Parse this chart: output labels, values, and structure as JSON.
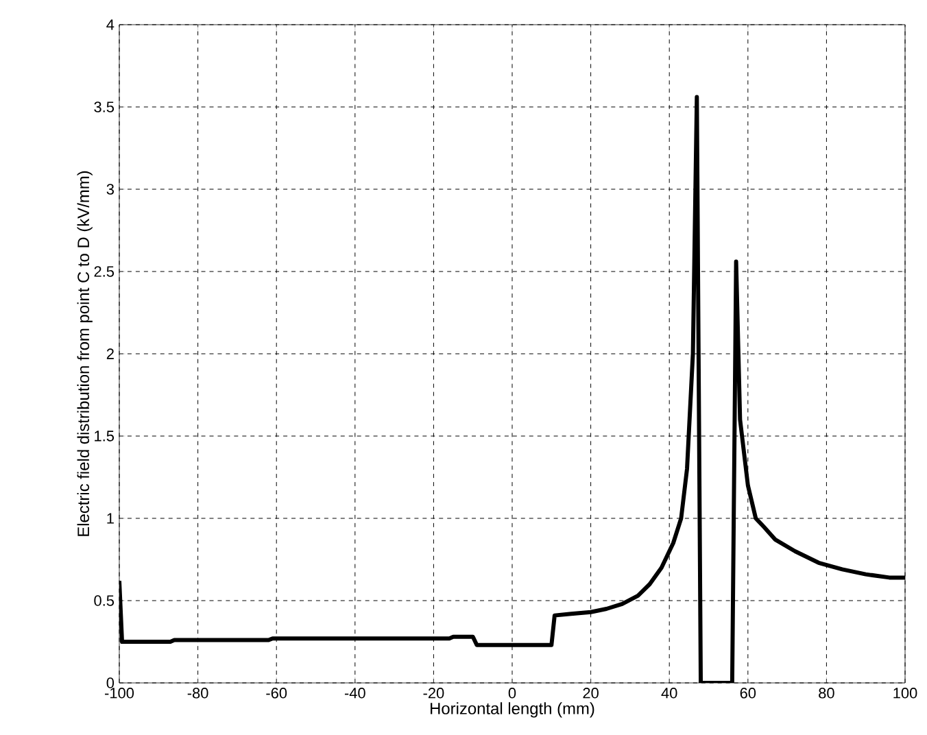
{
  "chart_data": {
    "type": "line",
    "xlabel": "Horizontal length (mm)",
    "ylabel": "Electric field distribution from point C to D (kV/mm)",
    "series": [
      {
        "color": "#000000",
        "x": [
          -100,
          -99.3,
          -87,
          -86,
          -62,
          -61,
          -16,
          -15,
          -10,
          -9,
          10,
          10.8,
          15,
          20,
          24,
          28,
          32,
          35,
          38,
          41,
          43,
          44.5,
          46,
          47,
          48,
          56,
          57,
          58,
          60,
          62,
          64,
          67,
          72,
          78,
          84,
          90,
          96,
          100
        ],
        "values": [
          0.62,
          0.25,
          0.25,
          0.26,
          0.26,
          0.27,
          0.27,
          0.28,
          0.28,
          0.23,
          0.23,
          0.41,
          0.42,
          0.43,
          0.45,
          0.48,
          0.53,
          0.6,
          0.7,
          0.85,
          1.0,
          1.3,
          2.0,
          3.56,
          0,
          0,
          2.56,
          1.6,
          1.2,
          1.0,
          0.95,
          0.87,
          0.8,
          0.73,
          0.69,
          0.66,
          0.64,
          0.64
        ]
      }
    ],
    "xlim": [
      -100,
      100
    ],
    "ylim": [
      0,
      4
    ],
    "xticks": [
      -100,
      -80,
      -60,
      -40,
      -20,
      0,
      20,
      40,
      60,
      80,
      100
    ],
    "yticks": [
      0,
      0.5,
      1,
      1.5,
      2,
      2.5,
      3,
      3.5,
      4
    ],
    "grid": true,
    "marker": "none",
    "line_style": "solid"
  }
}
